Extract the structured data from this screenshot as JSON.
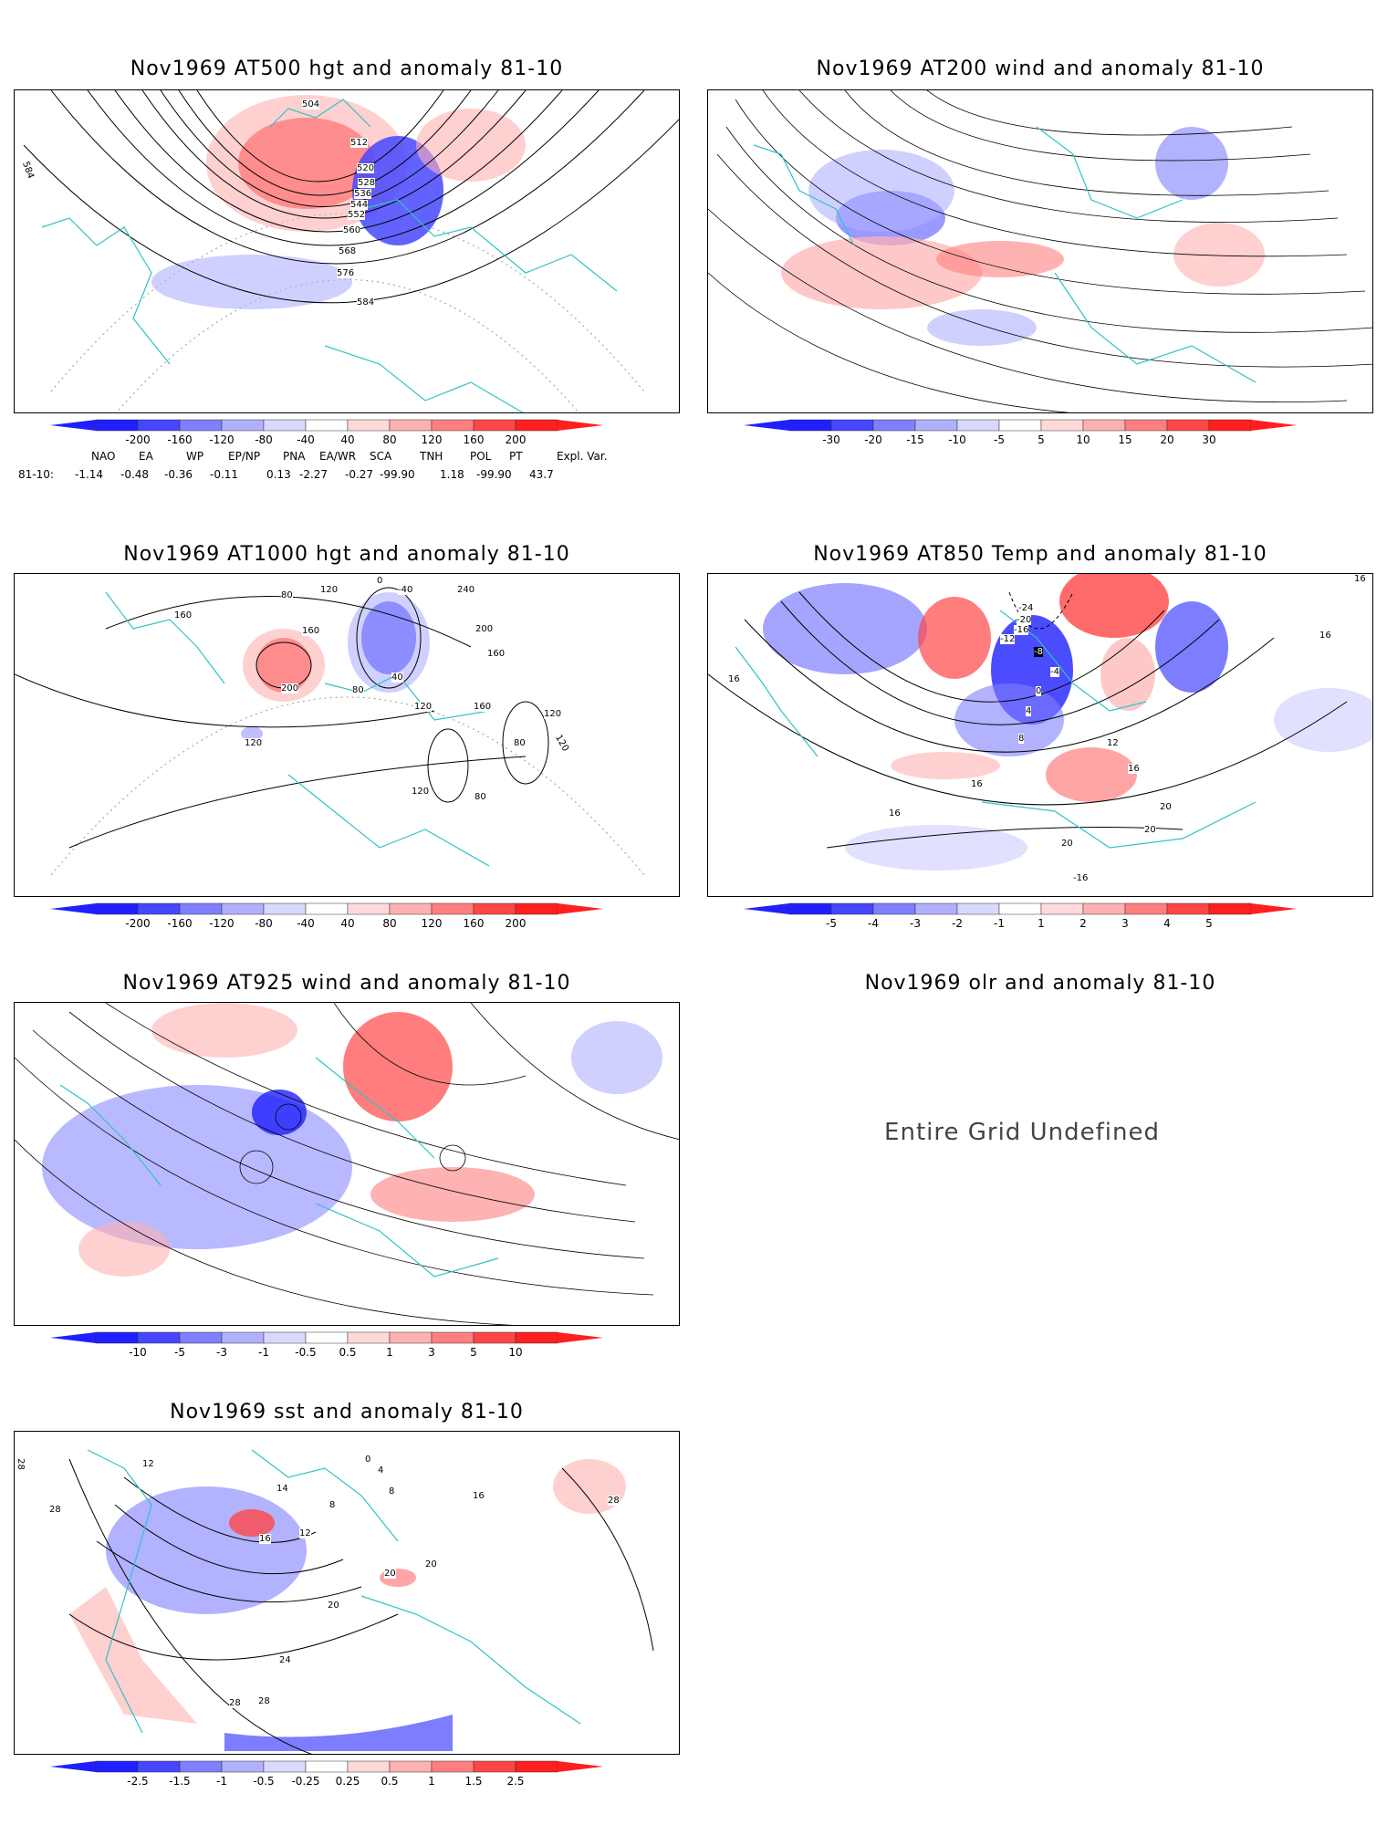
{
  "panels": [
    {
      "id": "p1",
      "title": "Nov1969 AT500 hgt and anomaly 81-10",
      "contour_labels": [
        "504",
        "512",
        "520",
        "528",
        "536",
        "544",
        "552",
        "560",
        "568",
        "576",
        "584",
        "584"
      ],
      "colorbar": {
        "labels": [
          "-200",
          "-160",
          "-120",
          "-80",
          "-40",
          "40",
          "80",
          "120",
          "160",
          "200"
        ]
      }
    },
    {
      "id": "p2",
      "title": "Nov1969 AT200 wind and anomaly 81-10",
      "colorbar": {
        "labels": [
          "-30",
          "-20",
          "-15",
          "-10",
          "-5",
          "5",
          "10",
          "15",
          "20",
          "30"
        ]
      }
    },
    {
      "id": "p3",
      "title": "Nov1969 AT1000 hgt and anomaly 81-10",
      "contour_labels": [
        "0",
        "-40",
        "80",
        "120",
        "160",
        "160",
        "200",
        "240",
        "200",
        "160",
        "40",
        "80",
        "120",
        "160",
        "120",
        "120",
        "80",
        "120",
        "80",
        "120"
      ],
      "colorbar": {
        "labels": [
          "-200",
          "-160",
          "-120",
          "-80",
          "-40",
          "40",
          "80",
          "120",
          "160",
          "200"
        ]
      }
    },
    {
      "id": "p4",
      "title": "Nov1969 AT850 Temp and anomaly 81-10",
      "contour_labels": [
        "-24",
        "-20",
        "-16",
        "-12",
        "-8",
        "-4",
        "0",
        "4",
        "8",
        "12",
        "16",
        "16",
        "16",
        "16",
        "16",
        "20",
        "20",
        "20",
        "-16",
        "16"
      ],
      "colorbar": {
        "labels": [
          "-5",
          "-4",
          "-3",
          "-2",
          "-1",
          "1",
          "2",
          "3",
          "4",
          "5"
        ]
      }
    },
    {
      "id": "p5",
      "title": "Nov1969 AT925 wind and anomaly 81-10",
      "colorbar": {
        "labels": [
          "-10",
          "-5",
          "-3",
          "-1",
          "-0.5",
          "0.5",
          "1",
          "3",
          "5",
          "10"
        ]
      }
    },
    {
      "id": "p6",
      "title": "Nov1969 olr and anomaly 81-10",
      "message": "Entire Grid Undefined"
    },
    {
      "id": "p7",
      "title": "Nov1969 sst and anomaly 81-10",
      "contour_labels": [
        "12",
        "14",
        "8",
        "16",
        "12",
        "20",
        "20",
        "20",
        "24",
        "28",
        "28",
        "28",
        "0",
        "4",
        "8",
        "16",
        "28",
        "28"
      ],
      "colorbar": {
        "labels": [
          "-2.5",
          "-1.5",
          "-1",
          "-0.5",
          "-0.25",
          "0.25",
          "0.5",
          "1",
          "1.5",
          "2.5"
        ]
      }
    }
  ],
  "teleconnection_indices": {
    "headers": [
      "NAO",
      "EA",
      "WP",
      "EP/NP",
      "PNA",
      "EA/WR",
      "SCA",
      "TNH",
      "POL",
      "PT",
      "Expl. Var."
    ],
    "row_label": "81-10:",
    "values": [
      "-1.14",
      "-0.48",
      "-0.36",
      "-0.11",
      "0.13",
      "-2.27",
      "-0.27",
      "-99.90",
      "1.18",
      "-99.90",
      "43.7"
    ]
  },
  "colors": {
    "coast": "#2ec4c4",
    "blue_scale": [
      "#1f1fff",
      "#4646ff",
      "#7f7fff",
      "#b0b0ff",
      "#d9d9ff"
    ],
    "red_scale": [
      "#ffd9d9",
      "#ffb0b0",
      "#ff7f7f",
      "#ff4646",
      "#ff1f1f"
    ],
    "contour": "#000000",
    "grid": "#999999"
  }
}
